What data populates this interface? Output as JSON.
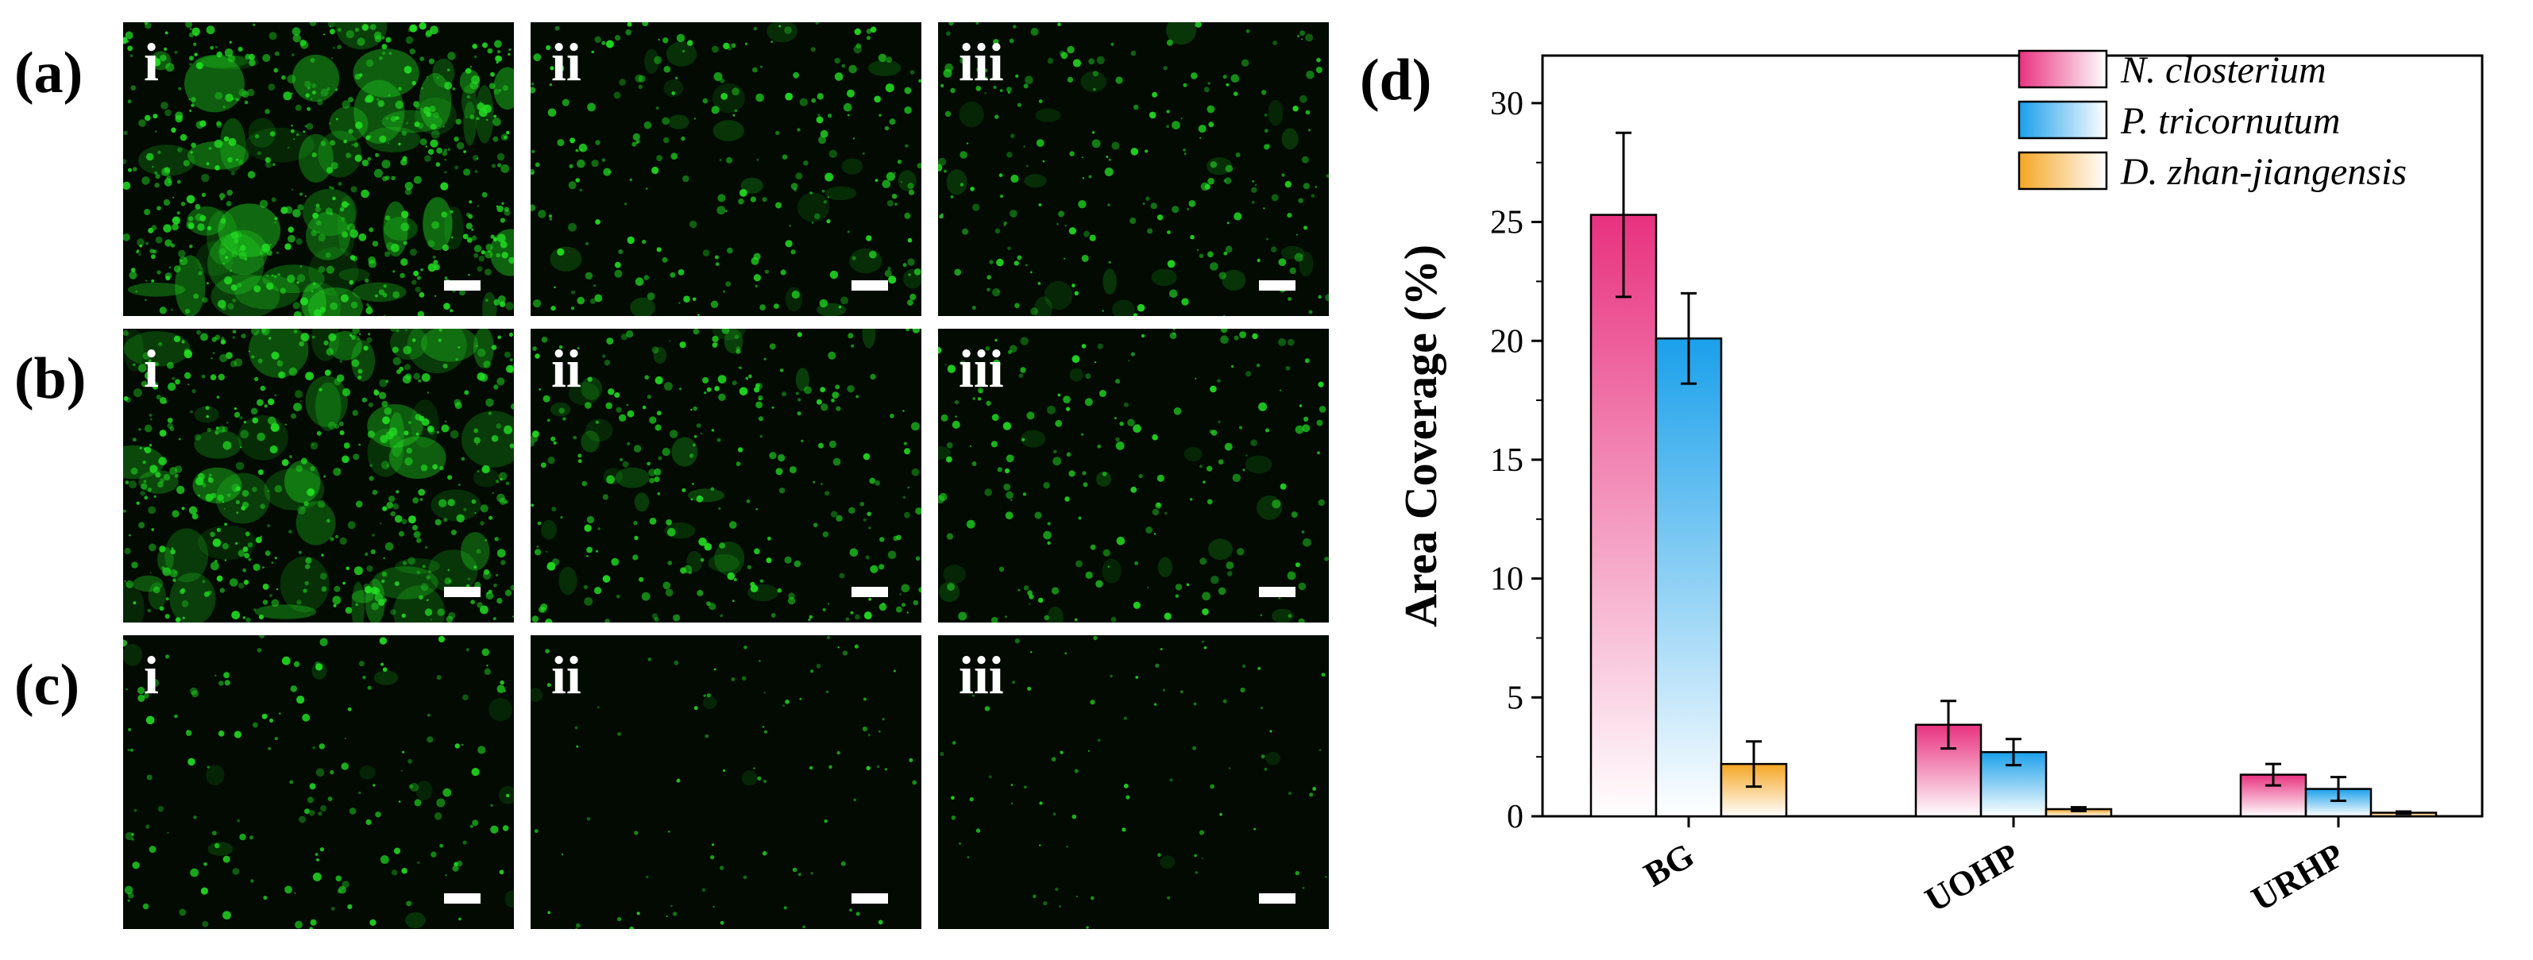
{
  "micrographs": {
    "rows": [
      {
        "label": "(a)",
        "panels": [
          {
            "label": "i",
            "density": 0.95
          },
          {
            "label": "ii",
            "density": 0.35
          },
          {
            "label": "iii",
            "density": 0.3
          }
        ]
      },
      {
        "label": "(b)",
        "panels": [
          {
            "label": "i",
            "density": 0.85
          },
          {
            "label": "ii",
            "density": 0.4
          },
          {
            "label": "iii",
            "density": 0.25
          }
        ]
      },
      {
        "label": "(c)",
        "panels": [
          {
            "label": "i",
            "density": 0.2
          },
          {
            "label": "ii",
            "density": 0.05
          },
          {
            "label": "iii",
            "density": 0.04
          }
        ]
      }
    ],
    "colors": {
      "background": "#020a02",
      "fluorescence": "#22dd22",
      "label": "#ffffff"
    }
  },
  "chart_data": {
    "type": "bar",
    "panel_label": "(d)",
    "title": "",
    "xlabel": "",
    "ylabel": "Area Coverage (%)",
    "ylim": [
      0,
      32
    ],
    "yticks": [
      0,
      5,
      10,
      15,
      20,
      25,
      30
    ],
    "categories": [
      "BG",
      "UOHP",
      "URHP"
    ],
    "legend_position": "top-right",
    "grid": false,
    "series": [
      {
        "name": "N. closterium",
        "values": [
          25.3,
          3.85,
          1.75
        ],
        "errors": [
          3.45,
          1.0,
          0.45
        ],
        "color": "#e8327f"
      },
      {
        "name": "P. tricornutum",
        "values": [
          20.1,
          2.7,
          1.15
        ],
        "errors": [
          1.9,
          0.55,
          0.5
        ],
        "color": "#1aa0ea"
      },
      {
        "name": "D. zhan-jiangensis",
        "values": [
          2.2,
          0.3,
          0.15
        ],
        "errors": [
          0.95,
          0.08,
          0.05
        ],
        "color": "#f5a623"
      }
    ]
  }
}
